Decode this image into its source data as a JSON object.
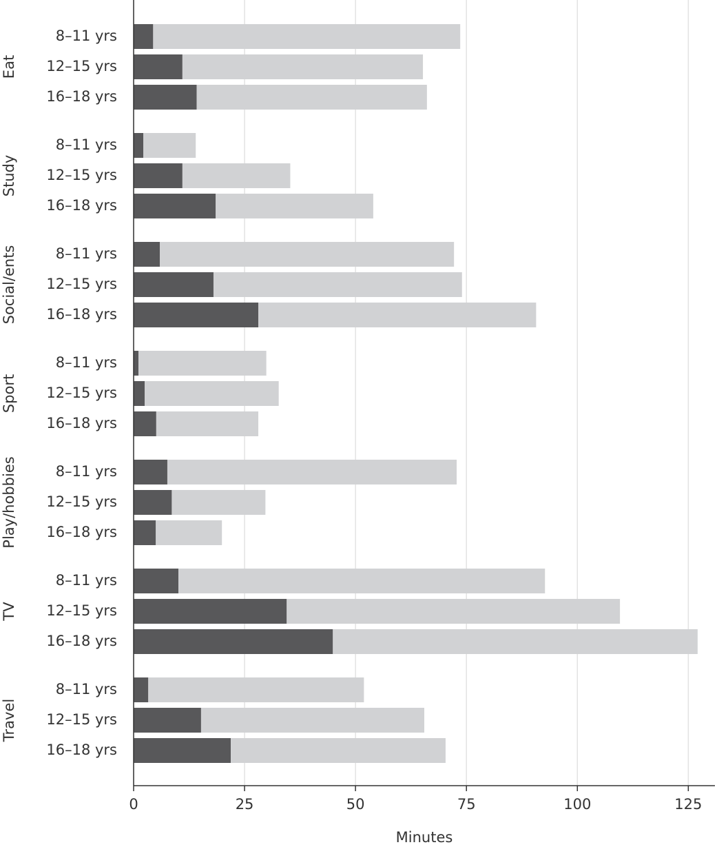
{
  "chart_data": {
    "type": "stacked-barh",
    "groups": [
      "Eat",
      "Study",
      "Social/ents",
      "Sport",
      "Play/hobbies",
      "TV",
      "Travel"
    ],
    "categories": [
      "8–11 yrs",
      "12–15 yrs",
      "16–18 yrs",
      "8–11 yrs",
      "12–15 yrs",
      "16–18 yrs",
      "8–11 yrs",
      "12–15 yrs",
      "16–18 yrs",
      "8–11 yrs",
      "12–15 yrs",
      "16–18 yrs",
      "8–11 yrs",
      "12–15 yrs",
      "16–18 yrs",
      "8–11 yrs",
      "12–15 yrs",
      "16–18 yrs",
      "8–11 yrs",
      "12–15 yrs",
      "16–18 yrs"
    ],
    "series": [
      {
        "color": "#58585a",
        "values": [
          4.4,
          11.0,
          14.2,
          2.2,
          11.0,
          18.5,
          5.9,
          18.0,
          28.1,
          1.1,
          2.5,
          5.1,
          7.6,
          8.6,
          5.0,
          10.1,
          34.5,
          44.9,
          3.3,
          15.2,
          21.9
        ]
      },
      {
        "color": "#d1d2d4",
        "values": [
          69.2,
          54.2,
          51.9,
          11.8,
          24.3,
          35.5,
          66.3,
          56.0,
          62.6,
          28.8,
          30.2,
          23.0,
          65.2,
          21.1,
          14.9,
          82.6,
          75.1,
          82.2,
          48.6,
          50.3,
          48.4
        ]
      }
    ],
    "xlabel": "Minutes",
    "xlim": [
      0,
      131
    ],
    "xticks": [
      0,
      25,
      50,
      75,
      100,
      125
    ],
    "grid": true
  }
}
